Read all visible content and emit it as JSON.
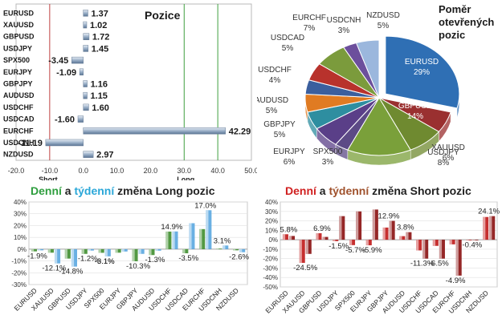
{
  "chart_data": [
    {
      "type": "bar",
      "orientation": "horizontal",
      "title": "Pozice",
      "categories": [
        "EURUSD",
        "XAUUSD",
        "GBPUSD",
        "USDJPY",
        "SPX500",
        "EURJPY",
        "GBPJPY",
        "AUDUSD",
        "USDCHF",
        "USDCAD",
        "EURCHF",
        "USDCNH",
        "NZDUSD"
      ],
      "values": [
        1.37,
        1.02,
        1.72,
        1.45,
        -3.45,
        -1.09,
        1.16,
        1.15,
        1.6,
        -1.6,
        42.29,
        -11.19,
        2.97
      ],
      "value_labels": [
        "1.37",
        "1.02",
        "1.72",
        "1.45",
        "-3.45",
        "-1.09",
        "1.16",
        "1.15",
        "1.60",
        "-1.60",
        "42.29",
        "-11.19",
        "2.97"
      ],
      "xlim": [
        -20,
        50
      ],
      "xticks": [
        "-20.0",
        "-10.0",
        "0.0",
        "10.0",
        "20.0",
        "30.0",
        "40.0",
        "50.0"
      ],
      "annotations": [
        "Short",
        "Long"
      ],
      "colors": {
        "bar": "#9bb0c8",
        "short_line": "#c04040",
        "long_line": "#40a040"
      }
    },
    {
      "type": "pie",
      "title": "Poměr otevřených pozic",
      "categories": [
        "EURUSD",
        "XAUUSD",
        "USDJPY",
        "GBPUSD",
        "SPX500",
        "EURJPY",
        "GBPJPY",
        "AUDUSD",
        "USDCHF",
        "USDCAD",
        "EURCHF",
        "USDCNH",
        "NZDUSD"
      ],
      "values": [
        29,
        6,
        8,
        14,
        3,
        6,
        5,
        5,
        4,
        5,
        7,
        3,
        5
      ],
      "labels": [
        "EURUSD 29%",
        "XAUUSD 6%",
        "USDJPY 8%",
        "GBPUSD 14%",
        "SPX500 3%",
        "EURJPY 6%",
        "GBPJPY 5%",
        "AUDUSD 5%",
        "USDCHF 4%",
        "USDCAD 5%",
        "EURCHF 7%",
        "USDCNH 3%",
        "NZDUSD 5%"
      ],
      "colors": [
        "#2f6fb4",
        "#9a3030",
        "#6f8a30",
        "#7aa03a",
        "#5c4a86",
        "#5a3f88",
        "#2e8ea0",
        "#e07b22",
        "#3b5f9e",
        "#b8322c",
        "#7b9b3c",
        "#6c4f9c",
        "#9bb7dd"
      ]
    },
    {
      "type": "bar",
      "title_parts": [
        {
          "text": "Denní",
          "color": "#2e9e3e"
        },
        {
          "text": " a ",
          "color": "#222222"
        },
        {
          "text": "týdenní",
          "color": "#2aa7d8"
        },
        {
          "text": " změna Long pozic",
          "color": "#222222"
        }
      ],
      "categories": [
        "EURUSD",
        "XAUUSD",
        "GBPUSD",
        "USDJPY",
        "SPX500",
        "EURJPY",
        "GBPJPY",
        "AUDUSD",
        "USDCHF",
        "USDCAD",
        "EURCHF",
        "USDCNH",
        "NZDUSD"
      ],
      "series": [
        {
          "key": "daily",
          "values": [
            -1.9,
            -3.0,
            -8.0,
            -4.0,
            -3.1,
            -3.0,
            -10.3,
            -5.0,
            14.9,
            -3.5,
            17.0,
            0.5,
            -1.0
          ]
        },
        {
          "key": "weekly",
          "values": [
            -1.0,
            -12.1,
            -14.8,
            -1.2,
            -6.1,
            -2.0,
            -4.0,
            -1.3,
            15.0,
            22.0,
            33.0,
            3.1,
            -2.6
          ]
        }
      ],
      "data_labels": [
        {
          "i": 0,
          "text": "-1.9%"
        },
        {
          "i": 1,
          "text": "-12.1%"
        },
        {
          "i": 2,
          "text": "-14.8%"
        },
        {
          "i": 3,
          "text": "-1.2%"
        },
        {
          "i": 4,
          "text": "-6.1%"
        },
        {
          "i": 4,
          "text": "-3.1%"
        },
        {
          "i": 6,
          "text": "-10.3%"
        },
        {
          "i": 7,
          "text": "-1.3%"
        },
        {
          "i": 8,
          "text": "14.9%"
        },
        {
          "i": 9,
          "text": "-3.5%"
        },
        {
          "i": 10,
          "text": "17.0%"
        },
        {
          "i": 11,
          "text": "3.1%"
        },
        {
          "i": 12,
          "text": "-2.6%"
        }
      ],
      "ylim": [
        -30,
        40
      ],
      "yticks": [
        "40%",
        "30%",
        "20%",
        "10%",
        "0%",
        "-10%",
        "-20%",
        "-30%"
      ],
      "colors": {
        "daily": "#3f8e2f",
        "weekly": "#5aa7e0"
      }
    },
    {
      "type": "bar",
      "title_parts": [
        {
          "text": "Denní",
          "color": "#d02020"
        },
        {
          "text": " a ",
          "color": "#222222"
        },
        {
          "text": "týdenní",
          "color": "#a0522d"
        },
        {
          "text": " změna Short pozic",
          "color": "#222222"
        }
      ],
      "categories": [
        "EURUSD",
        "XAUUSD",
        "GBPUSD",
        "USDJPY",
        "SPX500",
        "EURJPY",
        "GBPJPY",
        "AUDUSD",
        "USDCHF",
        "USDCAD",
        "EURCHF",
        "USDCNH",
        "NZDUSD"
      ],
      "series": [
        {
          "key": "daily",
          "values": [
            5.8,
            -24.5,
            6.9,
            -1.5,
            -5.7,
            -5.9,
            12.9,
            3.8,
            -11.3,
            -6.5,
            -4.9,
            -0.4,
            24.1
          ]
        },
        {
          "key": "weekly",
          "values": [
            4.0,
            -15.0,
            3.0,
            25.0,
            30.0,
            32.0,
            20.0,
            8.0,
            -20.0,
            -20.0,
            -38.0,
            0.0,
            25.0
          ]
        }
      ],
      "data_labels": [
        {
          "i": 0,
          "text": "5.8%"
        },
        {
          "i": 1,
          "text": "-24.5%"
        },
        {
          "i": 2,
          "text": "6.9%"
        },
        {
          "i": 3,
          "text": "-1.5%"
        },
        {
          "i": 4,
          "text": "-5.7%"
        },
        {
          "i": 5,
          "text": "-5.9%"
        },
        {
          "i": 6,
          "text": "12.9%"
        },
        {
          "i": 7,
          "text": "3.8%"
        },
        {
          "i": 8,
          "text": "-11.3%"
        },
        {
          "i": 9,
          "text": "-6.5%"
        },
        {
          "i": 10,
          "text": "-4.9%"
        },
        {
          "i": 11,
          "text": "-0.4%"
        },
        {
          "i": 12,
          "text": "24.1%"
        }
      ],
      "ylim": [
        -50,
        40
      ],
      "yticks": [
        "40%",
        "30%",
        "20%",
        "10%",
        "0%",
        "-10%",
        "-20%",
        "-30%",
        "-40%",
        "-50%"
      ],
      "colors": {
        "daily": "#c01818",
        "weekly": "#8a1010"
      }
    }
  ]
}
